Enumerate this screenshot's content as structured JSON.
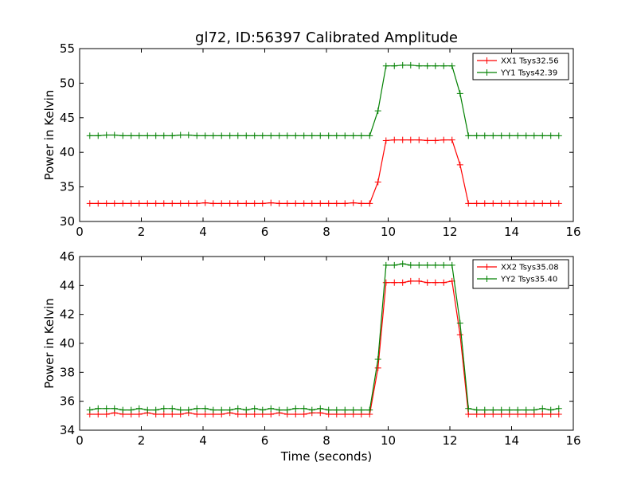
{
  "figure": {
    "title": "gl72, ID:56397 Calibrated Amplitude",
    "xlabel": "Time (seconds)"
  },
  "chart_data": [
    {
      "type": "line",
      "title": "gl72, ID:56397 Calibrated Amplitude",
      "xlabel": "",
      "ylabel": "Power in Kelvin",
      "xlim": [
        0,
        16
      ],
      "ylim": [
        30,
        55
      ],
      "x_ticks": [
        0,
        2,
        4,
        6,
        8,
        10,
        12,
        14,
        16
      ],
      "y_ticks": [
        30,
        35,
        40,
        45,
        50,
        55
      ],
      "grid": false,
      "legend_position": "top-right",
      "x": [
        0.33,
        0.6,
        0.87,
        1.13,
        1.4,
        1.67,
        1.93,
        2.2,
        2.47,
        2.73,
        3.0,
        3.27,
        3.53,
        3.8,
        4.07,
        4.33,
        4.6,
        4.87,
        5.13,
        5.4,
        5.67,
        5.93,
        6.2,
        6.47,
        6.73,
        7.0,
        7.27,
        7.53,
        7.8,
        8.07,
        8.33,
        8.6,
        8.87,
        9.13,
        9.4,
        9.67,
        9.93,
        10.2,
        10.47,
        10.73,
        11.0,
        11.27,
        11.53,
        11.8,
        12.07,
        12.33,
        12.6,
        12.87,
        13.13,
        13.4,
        13.67,
        13.93,
        14.2,
        14.47,
        14.73,
        15.0,
        15.27,
        15.53
      ],
      "series": [
        {
          "name": "XX1 Tsys32.56",
          "color": "#ff0000",
          "values": [
            32.6,
            32.6,
            32.6,
            32.6,
            32.6,
            32.6,
            32.6,
            32.6,
            32.6,
            32.6,
            32.6,
            32.6,
            32.6,
            32.6,
            32.7,
            32.6,
            32.6,
            32.6,
            32.6,
            32.6,
            32.6,
            32.6,
            32.7,
            32.6,
            32.6,
            32.6,
            32.6,
            32.6,
            32.6,
            32.6,
            32.6,
            32.6,
            32.7,
            32.6,
            32.6,
            35.7,
            41.7,
            41.8,
            41.8,
            41.8,
            41.8,
            41.7,
            41.7,
            41.8,
            41.8,
            38.2,
            32.6,
            32.6,
            32.6,
            32.6,
            32.6,
            32.6,
            32.6,
            32.6,
            32.6,
            32.6,
            32.6,
            32.6
          ]
        },
        {
          "name": "YY1 Tsys42.39",
          "color": "#008000",
          "values": [
            42.4,
            42.4,
            42.5,
            42.5,
            42.4,
            42.4,
            42.4,
            42.4,
            42.4,
            42.4,
            42.4,
            42.5,
            42.5,
            42.4,
            42.4,
            42.4,
            42.4,
            42.4,
            42.4,
            42.4,
            42.4,
            42.4,
            42.4,
            42.4,
            42.4,
            42.4,
            42.4,
            42.4,
            42.4,
            42.4,
            42.4,
            42.4,
            42.4,
            42.4,
            42.4,
            46.0,
            52.5,
            52.5,
            52.6,
            52.6,
            52.5,
            52.5,
            52.5,
            52.5,
            52.5,
            48.5,
            42.4,
            42.4,
            42.4,
            42.4,
            42.4,
            42.4,
            42.4,
            42.4,
            42.4,
            42.4,
            42.4,
            42.4
          ]
        }
      ]
    },
    {
      "type": "line",
      "title": "",
      "xlabel": "Time (seconds)",
      "ylabel": "Power in Kelvin",
      "xlim": [
        0,
        16
      ],
      "ylim": [
        34,
        46
      ],
      "x_ticks": [
        0,
        2,
        4,
        6,
        8,
        10,
        12,
        14,
        16
      ],
      "y_ticks": [
        34,
        36,
        38,
        40,
        42,
        44,
        46
      ],
      "grid": false,
      "legend_position": "top-right",
      "x": [
        0.33,
        0.6,
        0.87,
        1.13,
        1.4,
        1.67,
        1.93,
        2.2,
        2.47,
        2.73,
        3.0,
        3.27,
        3.53,
        3.8,
        4.07,
        4.33,
        4.6,
        4.87,
        5.13,
        5.4,
        5.67,
        5.93,
        6.2,
        6.47,
        6.73,
        7.0,
        7.27,
        7.53,
        7.8,
        8.07,
        8.33,
        8.6,
        8.87,
        9.13,
        9.4,
        9.67,
        9.93,
        10.2,
        10.47,
        10.73,
        11.0,
        11.27,
        11.53,
        11.8,
        12.07,
        12.33,
        12.6,
        12.87,
        13.13,
        13.4,
        13.67,
        13.93,
        14.2,
        14.47,
        14.73,
        15.0,
        15.27,
        15.53
      ],
      "series": [
        {
          "name": "XX2 Tsys35.08",
          "color": "#ff0000",
          "values": [
            35.1,
            35.1,
            35.1,
            35.2,
            35.1,
            35.1,
            35.1,
            35.2,
            35.1,
            35.1,
            35.1,
            35.1,
            35.2,
            35.1,
            35.1,
            35.1,
            35.1,
            35.2,
            35.1,
            35.1,
            35.1,
            35.1,
            35.1,
            35.2,
            35.1,
            35.1,
            35.1,
            35.2,
            35.2,
            35.1,
            35.1,
            35.1,
            35.1,
            35.1,
            35.1,
            38.3,
            44.2,
            44.2,
            44.2,
            44.3,
            44.3,
            44.2,
            44.2,
            44.2,
            44.3,
            40.6,
            35.1,
            35.1,
            35.1,
            35.1,
            35.1,
            35.1,
            35.1,
            35.1,
            35.1,
            35.1,
            35.1,
            35.1
          ]
        },
        {
          "name": "YY2 Tsys35.40",
          "color": "#008000",
          "values": [
            35.4,
            35.5,
            35.5,
            35.5,
            35.4,
            35.4,
            35.5,
            35.4,
            35.4,
            35.5,
            35.5,
            35.4,
            35.4,
            35.5,
            35.5,
            35.4,
            35.4,
            35.4,
            35.5,
            35.4,
            35.5,
            35.4,
            35.5,
            35.4,
            35.4,
            35.5,
            35.5,
            35.4,
            35.5,
            35.4,
            35.4,
            35.4,
            35.4,
            35.4,
            35.4,
            38.9,
            45.4,
            45.4,
            45.5,
            45.4,
            45.4,
            45.4,
            45.4,
            45.4,
            45.4,
            41.4,
            35.5,
            35.4,
            35.4,
            35.4,
            35.4,
            35.4,
            35.4,
            35.4,
            35.4,
            35.5,
            35.4,
            35.5
          ]
        }
      ]
    }
  ]
}
